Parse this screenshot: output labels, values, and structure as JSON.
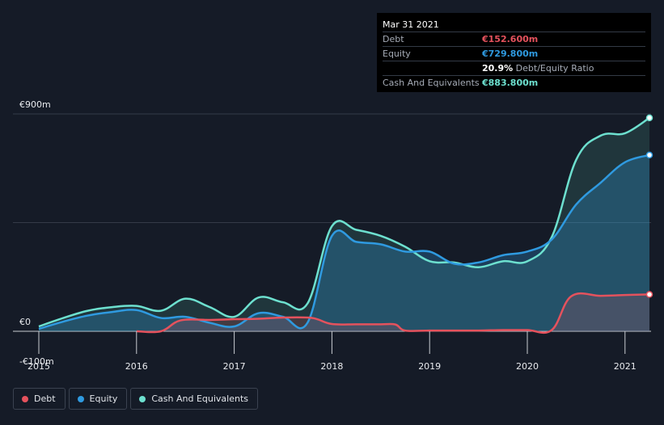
{
  "tooltip": {
    "date": "Mar 31 2021",
    "debt_label": "Debt",
    "debt_value": "€152.600m",
    "equity_label": "Equity",
    "equity_value": "€729.800m",
    "ratio_value": "20.9%",
    "ratio_label": "Debt/Equity Ratio",
    "cash_label": "Cash And Equivalents",
    "cash_value": "€883.800m"
  },
  "colors": {
    "debt": "#e5525d",
    "equity": "#2f9ae0",
    "cash": "#6de0cf"
  },
  "legend": [
    {
      "key": "debt",
      "label": "Debt"
    },
    {
      "key": "equity",
      "label": "Equity"
    },
    {
      "key": "cash",
      "label": "Cash And Equivalents"
    }
  ],
  "chart_data": {
    "type": "area",
    "y_tick_labels": [
      "€900m",
      "€0",
      "-€100m"
    ],
    "ylim": [
      -100,
      900
    ],
    "x_ticks": [
      2015,
      2016,
      2017,
      2018,
      2019,
      2020,
      2021
    ],
    "xlim": [
      2015.0,
      2021.25
    ],
    "grid": true,
    "legend_position": "bottom-left",
    "series": [
      {
        "name": "Debt",
        "key": "debt",
        "x": [
          2016.0,
          2016.25,
          2016.45,
          2016.75,
          2017.0,
          2017.25,
          2017.5,
          2017.75,
          2017.85,
          2018.0,
          2018.25,
          2018.5,
          2018.65,
          2018.75,
          2019.0,
          2019.25,
          2019.5,
          2019.75,
          2020.0,
          2020.25,
          2020.45,
          2020.75,
          2021.0,
          2021.25
        ],
        "values": [
          0,
          0,
          45,
          47,
          50,
          52,
          57,
          57,
          50,
          30,
          29,
          29,
          28,
          3,
          3,
          3,
          3,
          5,
          5,
          5,
          145,
          147,
          150,
          152.6
        ]
      },
      {
        "name": "Equity",
        "key": "equity",
        "x": [
          2015.0,
          2015.25,
          2015.5,
          2015.75,
          2016.0,
          2016.25,
          2016.5,
          2016.75,
          2017.0,
          2017.25,
          2017.5,
          2017.75,
          2018.0,
          2018.25,
          2018.5,
          2018.75,
          2019.0,
          2019.25,
          2019.5,
          2019.75,
          2020.0,
          2020.25,
          2020.5,
          2020.75,
          2021.0,
          2021.25
        ],
        "values": [
          10,
          40,
          65,
          80,
          88,
          55,
          60,
          35,
          20,
          75,
          60,
          35,
          395,
          370,
          360,
          330,
          330,
          280,
          285,
          315,
          330,
          380,
          525,
          615,
          700,
          729.8
        ]
      },
      {
        "name": "Cash And Equivalents",
        "key": "cash",
        "x": [
          2015.0,
          2015.25,
          2015.5,
          2015.75,
          2016.0,
          2016.25,
          2016.5,
          2016.75,
          2017.0,
          2017.25,
          2017.5,
          2017.75,
          2018.0,
          2018.25,
          2018.5,
          2018.75,
          2019.0,
          2019.25,
          2019.5,
          2019.75,
          2020.0,
          2020.25,
          2020.5,
          2020.75,
          2021.0,
          2021.25
        ],
        "values": [
          20,
          55,
          85,
          100,
          105,
          85,
          135,
          100,
          60,
          140,
          120,
          115,
          435,
          420,
          395,
          350,
          290,
          285,
          265,
          290,
          290,
          390,
          710,
          810,
          820,
          883.8
        ]
      }
    ]
  }
}
